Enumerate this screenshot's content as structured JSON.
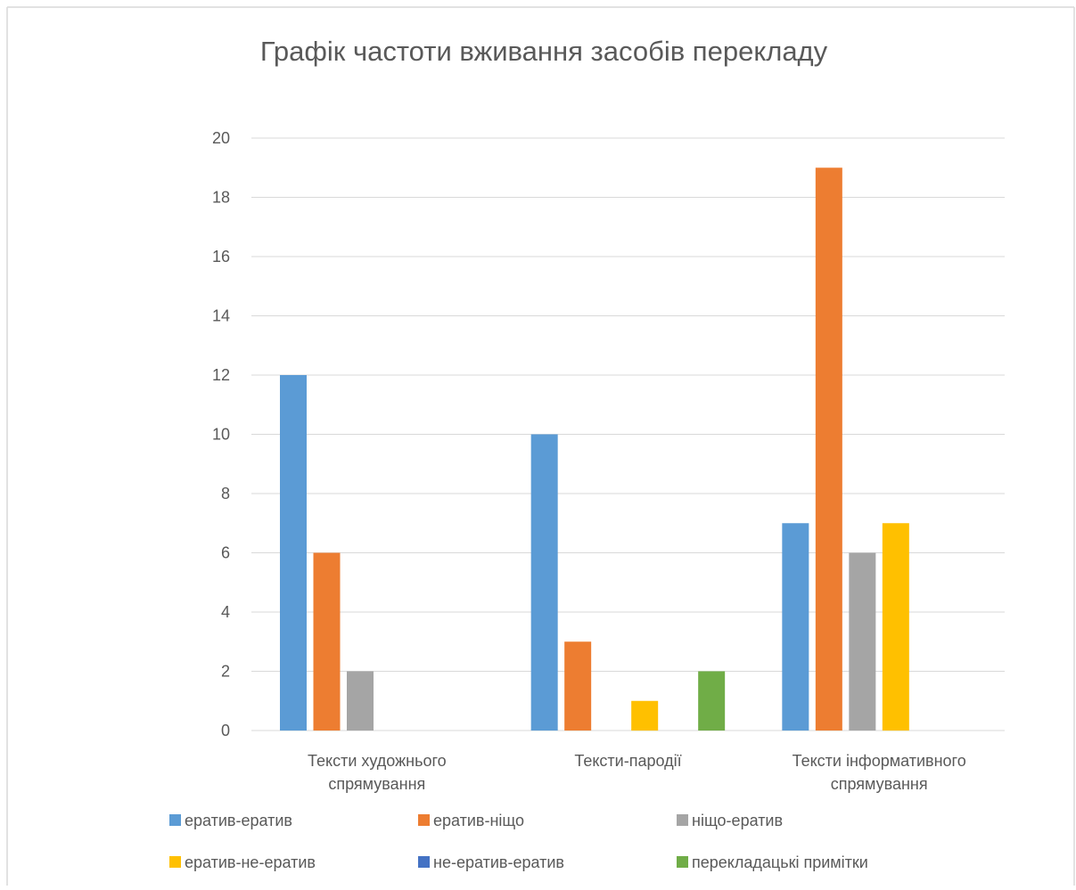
{
  "chart_data": {
    "type": "bar",
    "title": "Графік частоти вживання засобів перекладу",
    "xlabel": "",
    "ylabel": "",
    "categories": [
      [
        "Тексти художнього",
        "спрямування"
      ],
      [
        "Тексти-пародії"
      ],
      [
        "Тексти інформативного",
        "спрямування"
      ]
    ],
    "ylim": [
      0,
      20
    ],
    "yticks": [
      "0",
      "2",
      "4",
      "6",
      "8",
      "10",
      "12",
      "14",
      "16",
      "18",
      "20"
    ],
    "grid": true,
    "legend_position": "bottom",
    "series": [
      {
        "name": "ератив-ератив",
        "color": "#5B9BD5",
        "values": [
          12,
          10,
          7
        ]
      },
      {
        "name": "ератив-ніщо",
        "color": "#ED7D31",
        "values": [
          6,
          3,
          19
        ]
      },
      {
        "name": "ніщо-ератив",
        "color": "#A5A5A5",
        "values": [
          2,
          0,
          6
        ]
      },
      {
        "name": "ератив-не-ератив",
        "color": "#FFC000",
        "values": [
          0,
          1,
          7
        ]
      },
      {
        "name": "не-ератив-ератив",
        "color": "#4472C4",
        "values": [
          0,
          0,
          0
        ]
      },
      {
        "name": "перекладацькі примітки",
        "color": "#70AD47",
        "values": [
          0,
          2,
          0
        ]
      }
    ]
  }
}
